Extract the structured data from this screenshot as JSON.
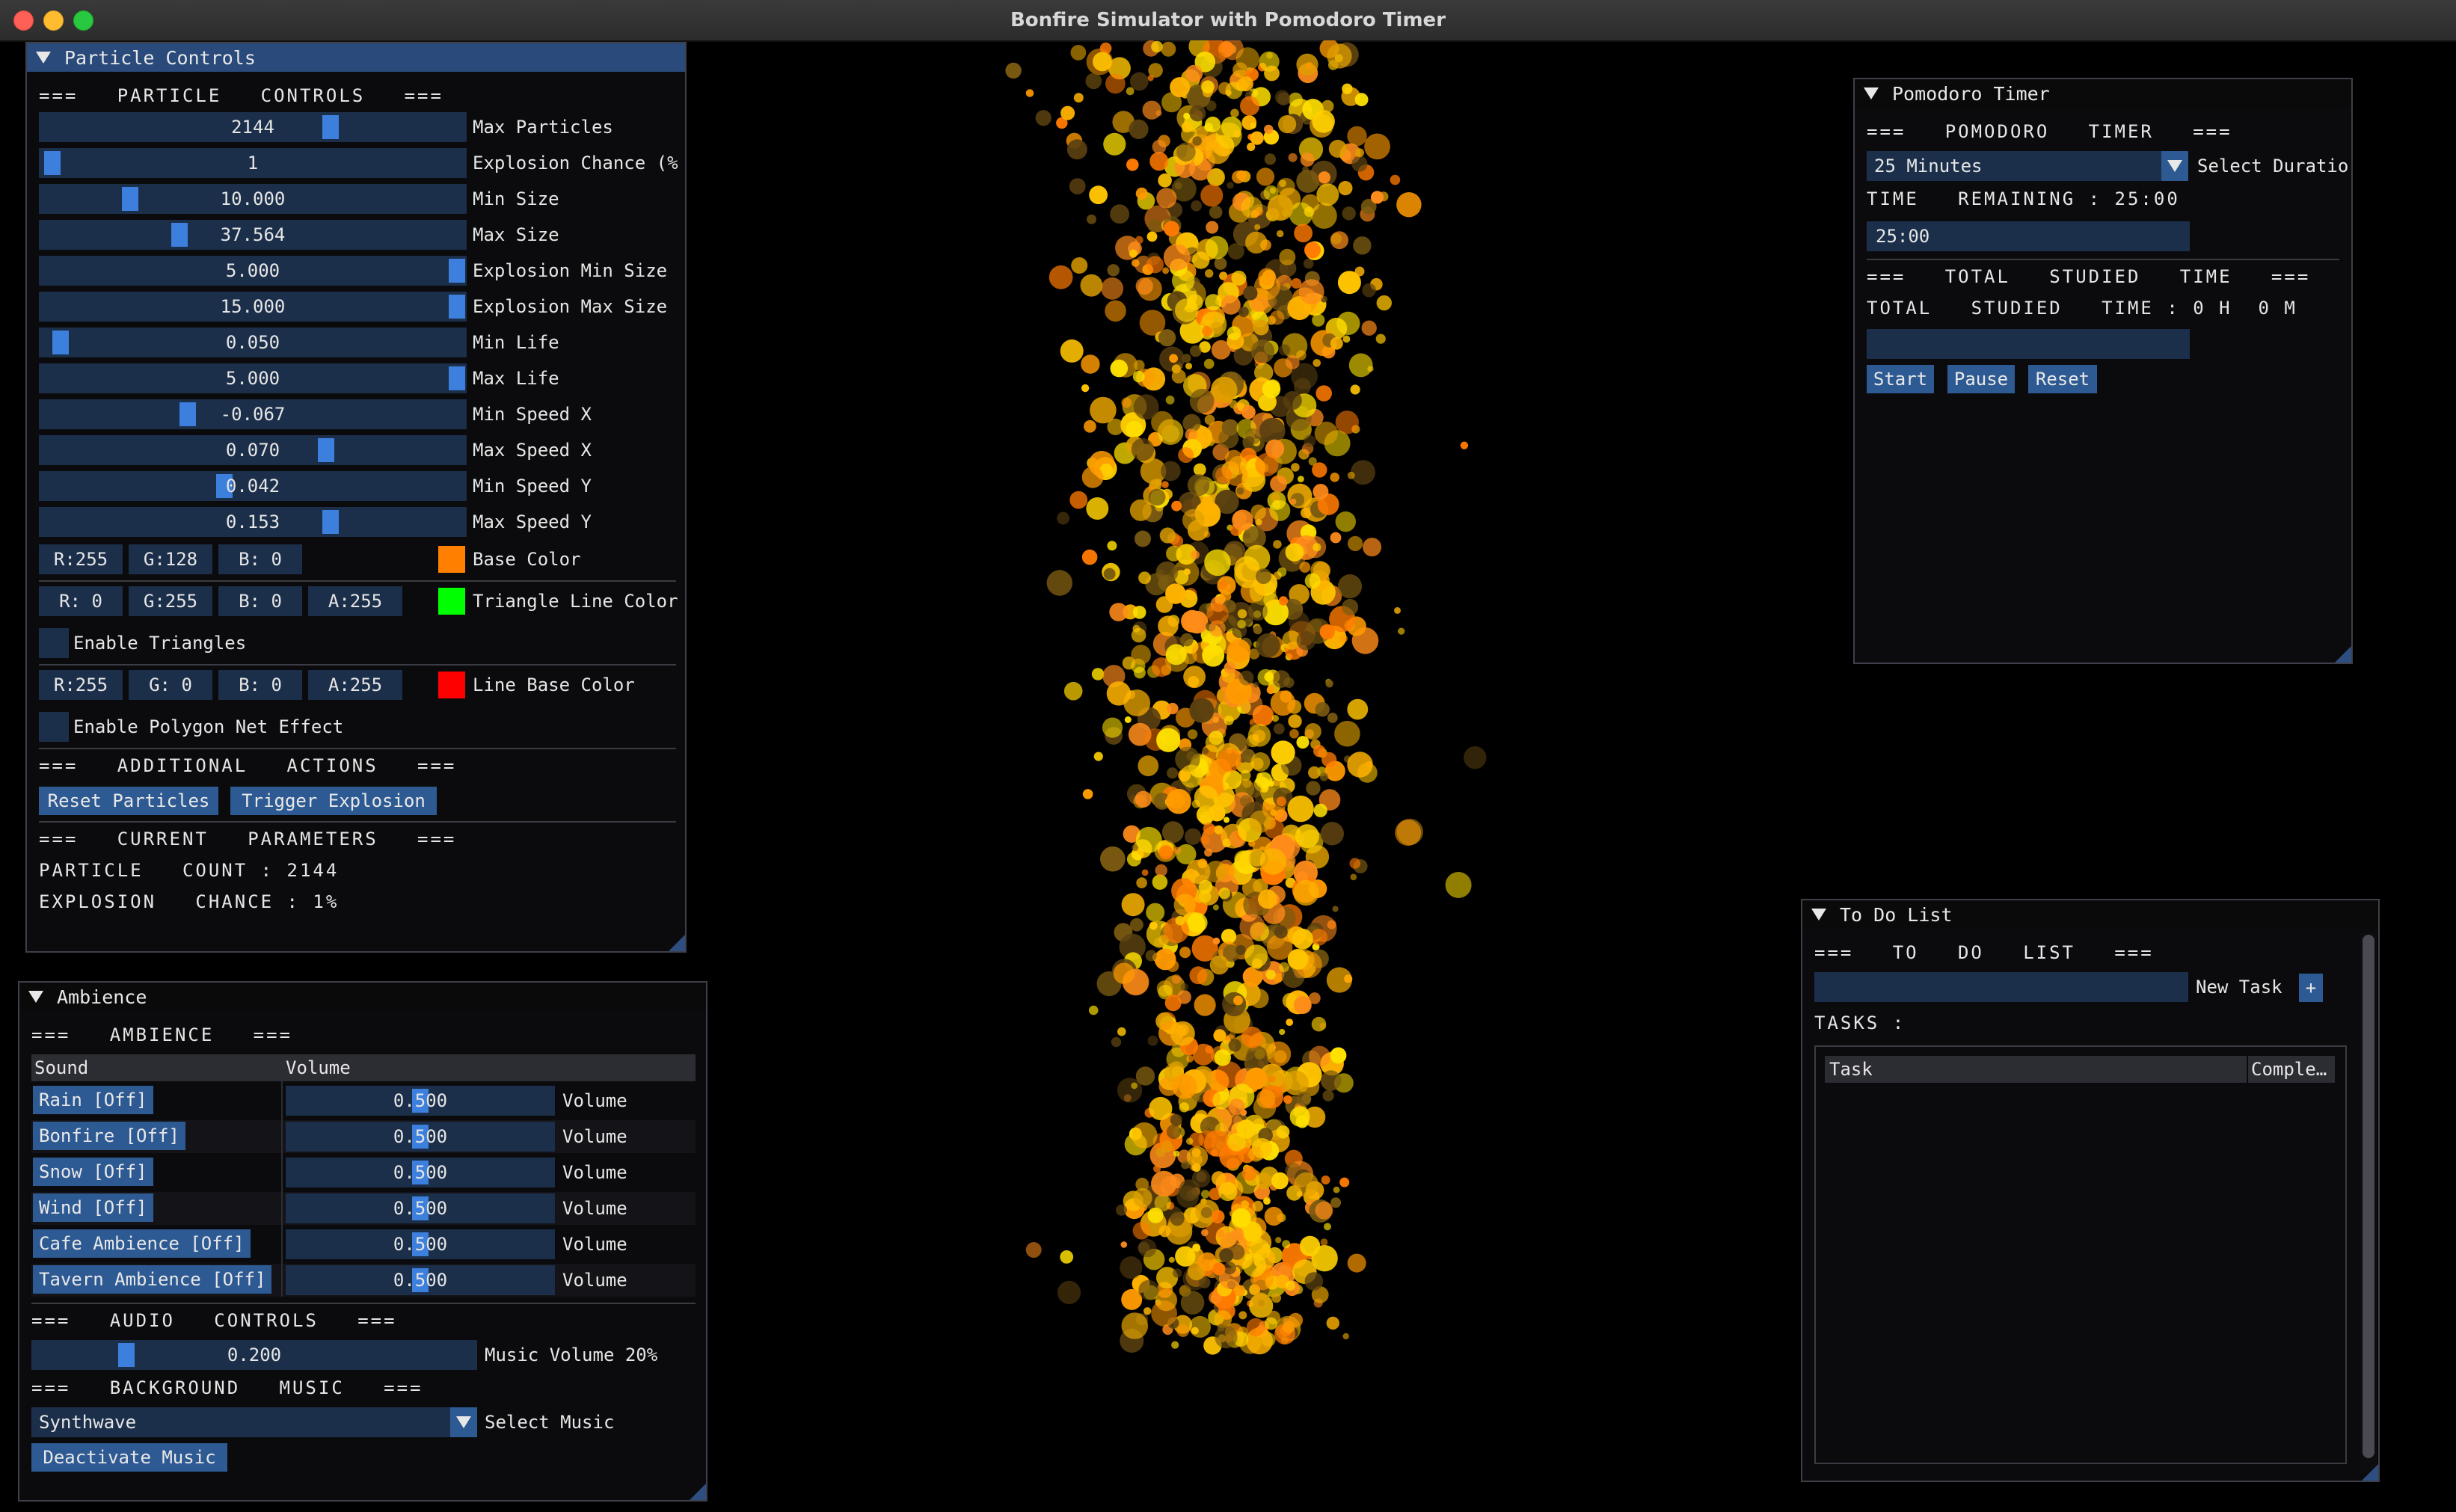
{
  "app": {
    "title": "Bonfire Simulator with Pomodoro Timer"
  },
  "particle": {
    "title": "Particle Controls",
    "header": "===   PARTICLE   CONTROLS   ===",
    "sliders": [
      {
        "value": "2144",
        "label": "Max Particles",
        "level": 0.69
      },
      {
        "value": "1",
        "label": "Explosion Chance (%",
        "level": 0.01
      },
      {
        "value": "10.000",
        "label": "Min Size",
        "level": 0.2
      },
      {
        "value": "37.564",
        "label": "Max Size",
        "level": 0.32
      },
      {
        "value": "5.000",
        "label": "Explosion Min Size",
        "level": 1.0
      },
      {
        "value": "15.000",
        "label": "Explosion Max Size",
        "level": 1.0
      },
      {
        "value": "0.050",
        "label": "Min Life",
        "level": 0.03
      },
      {
        "value": "5.000",
        "label": "Max Life",
        "level": 1.0
      },
      {
        "value": "-0.067",
        "label": "Min Speed X",
        "level": 0.34
      },
      {
        "value": "0.070",
        "label": "Max Speed X",
        "level": 0.68
      },
      {
        "value": "0.042",
        "label": "Min Speed Y",
        "level": 0.43
      },
      {
        "value": "0.153",
        "label": "Max Speed Y",
        "level": 0.69
      }
    ],
    "base_color": {
      "r": "R:255",
      "g": "G:128",
      "b": "B:  0",
      "label": "Base Color",
      "swatch": "#ff8000"
    },
    "triangle_color": {
      "r": "R:  0",
      "g": "G:255",
      "b": "B:  0",
      "a": "A:255",
      "label": "Triangle Line Color",
      "swatch": "#00ff00"
    },
    "enable_triangles": "Enable Triangles",
    "line_color": {
      "r": "R:255",
      "g": "G:  0",
      "b": "B:  0",
      "a": "A:255",
      "label": "Line Base Color",
      "swatch": "#ff0000"
    },
    "enable_polygon": "Enable Polygon Net Effect",
    "actions_header": "===   ADDITIONAL   ACTIONS   ===",
    "reset_button": "Reset Particles",
    "explosion_button": "Trigger Explosion",
    "params_header": "===   CURRENT   PARAMETERS   ===",
    "count_text": "PARTICLE   COUNT : 2144",
    "chance_text": "EXPLOSION   CHANCE : 1%"
  },
  "ambience": {
    "title": "Ambience",
    "header": "===   AMBIENCE   ===",
    "col_sound": "Sound",
    "col_volume": "Volume",
    "rows": [
      {
        "sound": "Rain [Off]",
        "value": "0.500",
        "label": "Volume"
      },
      {
        "sound": "Bonfire [Off]",
        "value": "0.500",
        "label": "Volume"
      },
      {
        "sound": "Snow [Off]",
        "value": "0.500",
        "label": "Volume"
      },
      {
        "sound": "Wind [Off]",
        "value": "0.500",
        "label": "Volume"
      },
      {
        "sound": "Cafe Ambience [Off]",
        "value": "0.500",
        "label": "Volume"
      },
      {
        "sound": "Tavern Ambience [Off]",
        "value": "0.500",
        "label": "Volume"
      }
    ],
    "audio_header": "===   AUDIO   CONTROLS   ===",
    "music_volume_value": "0.200",
    "music_volume_label": "Music Volume 20%",
    "music_volume_level": 0.2,
    "bg_header": "===   BACKGROUND   MUSIC   ===",
    "music_selected": "Synthwave",
    "music_select_label": "Select Music",
    "deactivate_button": "Deactivate Music"
  },
  "pomodoro": {
    "title": "Pomodoro Timer",
    "header": "===   POMODORO   TIMER   ===",
    "duration_selected": "25 Minutes",
    "duration_label": "Select Duratio",
    "remaining_text": "TIME   REMAINING : 25:00",
    "progress_text": "25:00",
    "total_header": "===   TOTAL   STUDIED   TIME   ===",
    "total_text": "TOTAL   STUDIED   TIME : 0 H  0 M",
    "start_button": "Start",
    "pause_button": "Pause",
    "reset_button": "Reset"
  },
  "todo": {
    "title": "To Do List",
    "header": "===   TO   DO   LIST   ===",
    "new_task_label": "New Task",
    "add_button": "+",
    "tasks_label": "TASKS :",
    "col_task": "Task",
    "col_complete": "Comple…"
  }
}
